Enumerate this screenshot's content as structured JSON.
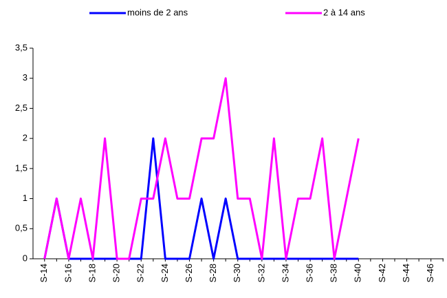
{
  "chart_data": {
    "type": "line",
    "categories": [
      "S-14",
      null,
      "S-16",
      null,
      "S-18",
      null,
      "S-20",
      null,
      "S-22",
      null,
      "S-24",
      null,
      "S-26",
      null,
      "S-28",
      null,
      "S-30",
      null,
      "S-32",
      null,
      "S-34",
      null,
      "S-36",
      null,
      "S-38",
      null,
      "S-40",
      null,
      "S-42",
      null,
      "S-44",
      null,
      "S-46",
      null
    ],
    "series": [
      {
        "name": "moins de 2 ans",
        "color": "#0000ff",
        "values": [
          0,
          1,
          0,
          0,
          0,
          0,
          0,
          0,
          0,
          2,
          0,
          0,
          0,
          1,
          0,
          1,
          0,
          0,
          0,
          0,
          0,
          0,
          0,
          0,
          0,
          0,
          0,
          null,
          null,
          null,
          null,
          null,
          null,
          null
        ]
      },
      {
        "name": "2 à 14 ans",
        "color": "#ff00ff",
        "values": [
          0,
          1,
          0,
          1,
          0,
          2,
          0,
          0,
          1,
          1,
          2,
          1,
          1,
          2,
          2,
          3,
          1,
          1,
          0,
          2,
          0,
          1,
          1,
          2,
          0,
          1,
          2,
          null,
          null,
          null,
          null,
          null,
          null,
          null
        ]
      }
    ],
    "ylim": [
      0,
      3.5
    ],
    "yticks": [
      0,
      {
        "value": 0.5,
        "label": "0,5"
      },
      1,
      {
        "value": 1.5,
        "label": "1,5"
      },
      2,
      {
        "value": 2.5,
        "label": "2,5"
      },
      3,
      {
        "value": 3.5,
        "label": "3,5"
      }
    ],
    "grid": false,
    "legend": "top"
  }
}
